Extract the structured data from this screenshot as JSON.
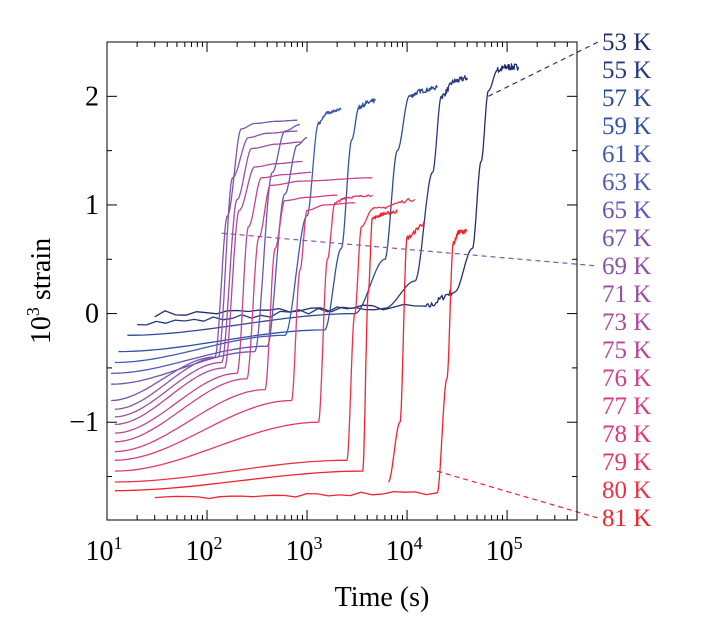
{
  "chart_data": {
    "type": "line",
    "xlabel": "Time (s)",
    "ylabel_base": "10",
    "ylabel_exp": "3",
    "ylabel_rest": " strain",
    "x_scale": "log",
    "xlim": [
      10,
      500000
    ],
    "ylim": [
      -1.9,
      2.5
    ],
    "x_ticks": [
      {
        "value": 10,
        "base": "10",
        "exp": "1"
      },
      {
        "value": 100,
        "base": "10",
        "exp": "2"
      },
      {
        "value": 1000,
        "base": "10",
        "exp": "3"
      },
      {
        "value": 10000,
        "base": "10",
        "exp": "4"
      },
      {
        "value": 100000,
        "base": "10",
        "exp": "5"
      }
    ],
    "y_ticks": [
      {
        "value": 2,
        "label": "2"
      },
      {
        "value": 1,
        "label": "1"
      },
      {
        "value": 0,
        "label": "0"
      },
      {
        "value": -1,
        "label": "−1"
      }
    ],
    "grid": false,
    "legend": "labels listed to the right of the plot, color-matched, top to bottom",
    "series": [
      {
        "name": "53 K",
        "color": "#222d6e",
        "x": [
          30,
          15000,
          30000,
          45000,
          55000,
          65000,
          80000,
          100000,
          130000
        ],
        "y": [
          0,
          0.06,
          0.2,
          0.6,
          1.4,
          2.05,
          2.24,
          2.27,
          2.27
        ],
        "noise": 0.03
      },
      {
        "name": "55 K",
        "color": "#263a80",
        "x": [
          20,
          6000,
          12000,
          18000,
          22000,
          30000,
          40000
        ],
        "y": [
          -0.08,
          0.05,
          0.3,
          1.3,
          2.0,
          2.14,
          2.17
        ],
        "noise": 0.025
      },
      {
        "name": "57 K",
        "color": "#2d4a95",
        "x": [
          16,
          3000,
          6000,
          8000,
          10500,
          14000,
          20000
        ],
        "y": [
          -0.2,
          0.0,
          0.5,
          1.5,
          2.0,
          2.05,
          2.08
        ],
        "noise": 0.02
      },
      {
        "name": "59 K",
        "color": "#3153a6",
        "x": [
          13,
          1500,
          2200,
          2800,
          3300,
          4000,
          4800
        ],
        "y": [
          -0.35,
          -0.15,
          0.6,
          1.6,
          1.9,
          1.94,
          1.96
        ],
        "noise": 0.02
      },
      {
        "name": "61 K",
        "color": "#3f5ab3",
        "x": [
          12,
          600,
          1000,
          1300,
          1600,
          2200
        ],
        "y": [
          -0.45,
          -0.2,
          0.9,
          1.75,
          1.85,
          1.88
        ],
        "noise": 0.012
      },
      {
        "name": "63 K",
        "color": "#5558b5",
        "x": [
          11,
          400,
          600,
          800,
          1000
        ],
        "y": [
          -0.55,
          -0.3,
          1.1,
          1.55,
          1.62
        ],
        "noise": 0
      },
      {
        "name": "65 K",
        "color": "#6a55b5",
        "x": [
          11,
          300,
          450,
          600,
          850
        ],
        "y": [
          -0.65,
          -0.35,
          1.3,
          1.68,
          1.74
        ],
        "noise": 0
      },
      {
        "name": "67 K",
        "color": "#7a54ad",
        "x": [
          11,
          120,
          160,
          220,
          300,
          500,
          800
        ],
        "y": [
          -0.8,
          -0.4,
          0.9,
          1.7,
          1.75,
          1.77,
          1.78
        ],
        "noise": 0
      },
      {
        "name": "69 K",
        "color": "#8a52a8",
        "x": [
          12,
          130,
          180,
          260,
          400,
          800
        ],
        "y": [
          -0.88,
          -0.4,
          1.25,
          1.62,
          1.66,
          1.68
        ],
        "noise": 0
      },
      {
        "name": "71 K",
        "color": "#9a4ea4",
        "x": [
          12,
          140,
          200,
          280,
          500,
          900
        ],
        "y": [
          -0.95,
          -0.45,
          1.05,
          1.52,
          1.56,
          1.58
        ],
        "noise": 0
      },
      {
        "name": "73 K",
        "color": "#aa4aa0",
        "x": [
          12,
          150,
          210,
          300,
          500,
          900
        ],
        "y": [
          -1.02,
          -0.5,
          0.95,
          1.35,
          1.38,
          1.4
        ],
        "noise": 0
      },
      {
        "name": "75 K",
        "color": "#ba4698",
        "x": [
          12,
          200,
          260,
          350,
          600,
          1100
        ],
        "y": [
          -1.1,
          -0.55,
          0.8,
          1.25,
          1.28,
          1.3
        ],
        "noise": 0
      },
      {
        "name": "76 K",
        "color": "#c9428f",
        "x": [
          12,
          250,
          330,
          430,
          900,
          4500
        ],
        "y": [
          -1.18,
          -0.6,
          0.7,
          1.18,
          1.22,
          1.25
        ],
        "noise": 0
      },
      {
        "name": "77 K",
        "color": "#d63e84",
        "x": [
          12,
          380,
          480,
          600,
          1000,
          2000
        ],
        "y": [
          -1.27,
          -0.7,
          0.6,
          1.04,
          1.07,
          1.09
        ],
        "noise": 0
      },
      {
        "name": "78 K",
        "color": "#e03a76",
        "x": [
          12,
          700,
          850,
          1000,
          1500,
          3000
        ],
        "y": [
          -1.35,
          -0.8,
          0.4,
          0.95,
          1.0,
          1.02
        ],
        "noise": 0
      },
      {
        "name": "79 K",
        "color": "#e83663",
        "x": [
          12,
          1300,
          1600,
          1900,
          2500,
          4500
        ],
        "y": [
          -1.45,
          -1.0,
          0.5,
          1.02,
          1.07,
          1.09
        ],
        "noise": 0.01
      },
      {
        "name": "80 K",
        "color": "#ee3048",
        "x": [
          12,
          2500,
          3000,
          3500,
          4500,
          12000
        ],
        "y": [
          -1.55,
          -1.35,
          0.0,
          0.8,
          0.96,
          1.05
        ],
        "noise": 0.015
      },
      {
        "name": "81 K",
        "color": "#f2222e",
        "x": [
          12,
          3600,
          4100,
          4500,
          6000,
          8000
        ],
        "y": [
          -1.63,
          -1.45,
          0.2,
          0.88,
          0.92,
          0.94
        ],
        "noise": 0.015
      },
      {
        "name": "",
        "color": "#f2222e",
        "x": [
          6500,
          8500,
          10000,
          15000
        ],
        "y": [
          -1.55,
          -1.0,
          0.7,
          0.83
        ],
        "noise": 0.02
      },
      {
        "name": "",
        "color": "#f2222e",
        "x": [
          30,
          20000,
          25000,
          29000,
          33000,
          40000
        ],
        "y": [
          -1.7,
          -1.65,
          -0.6,
          0.65,
          0.75,
          0.76
        ],
        "noise": 0.02
      }
    ],
    "guide_lines": [
      {
        "from": [
          65000,
          2.0
        ],
        "label_index": 0,
        "color": "#2a3275"
      },
      {
        "from": [
          140,
          0.74
        ],
        "label_index": 8,
        "color": "#8a52a8"
      },
      {
        "from": [
          20000,
          -1.45
        ],
        "label_index": 17,
        "color": "#f2222e"
      }
    ]
  }
}
